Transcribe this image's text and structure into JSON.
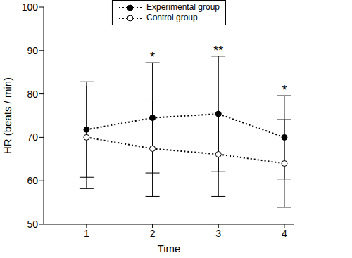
{
  "chart_data": {
    "type": "line",
    "x_label": "Time",
    "y_label": "HR (beats / min)",
    "x": [
      1,
      2,
      3,
      4
    ],
    "xlim": [
      0.35,
      4.15
    ],
    "xticks": [
      1,
      2,
      3,
      4
    ],
    "ylim": [
      50,
      100
    ],
    "yticks": [
      50,
      60,
      70,
      80,
      90,
      100
    ],
    "legend": "top",
    "grid": false,
    "series": [
      {
        "name": "Experimental group",
        "color": "#000000",
        "marker": "circle",
        "line_style": "dotted",
        "values": [
          71.8,
          74.5,
          75.4,
          70.0
        ],
        "errors": [
          11.0,
          12.7,
          13.3,
          9.6
        ]
      },
      {
        "name": "Control group",
        "color": "#000000",
        "marker": "open_circle",
        "line_style": "dotted",
        "values": [
          70.0,
          67.4,
          66.1,
          64.0
        ],
        "errors": [
          11.8,
          11.0,
          9.7,
          10.1
        ]
      }
    ],
    "annotations": [
      {
        "x": 2,
        "text": "*"
      },
      {
        "x": 3,
        "text": "**"
      },
      {
        "x": 4,
        "text": "*"
      }
    ]
  }
}
